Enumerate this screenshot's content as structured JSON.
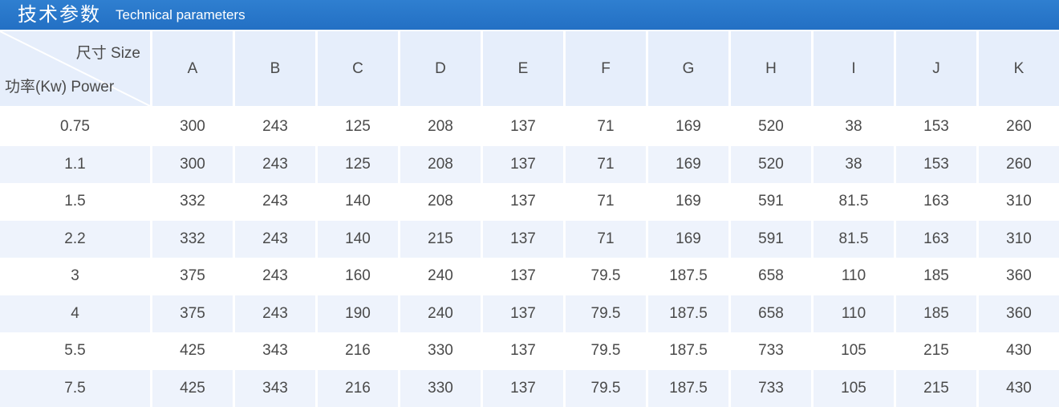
{
  "header": {
    "title_cn": "技术参数",
    "title_en": "Technical parameters"
  },
  "table": {
    "corner_top": "尺寸 Size",
    "corner_bottom": "功率(Kw) Power",
    "columns": [
      "A",
      "B",
      "C",
      "D",
      "E",
      "F",
      "G",
      "H",
      "I",
      "J",
      "K"
    ],
    "rows": [
      {
        "power": "0.75",
        "values": [
          "300",
          "243",
          "125",
          "208",
          "137",
          "71",
          "169",
          "520",
          "38",
          "153",
          "260"
        ]
      },
      {
        "power": "1.1",
        "values": [
          "300",
          "243",
          "125",
          "208",
          "137",
          "71",
          "169",
          "520",
          "38",
          "153",
          "260"
        ]
      },
      {
        "power": "1.5",
        "values": [
          "332",
          "243",
          "140",
          "208",
          "137",
          "71",
          "169",
          "591",
          "81.5",
          "163",
          "310"
        ]
      },
      {
        "power": "2.2",
        "values": [
          "332",
          "243",
          "140",
          "215",
          "137",
          "71",
          "169",
          "591",
          "81.5",
          "163",
          "310"
        ]
      },
      {
        "power": "3",
        "values": [
          "375",
          "243",
          "160",
          "240",
          "137",
          "79.5",
          "187.5",
          "658",
          "110",
          "185",
          "360"
        ]
      },
      {
        "power": "4",
        "values": [
          "375",
          "243",
          "190",
          "240",
          "137",
          "79.5",
          "187.5",
          "658",
          "110",
          "185",
          "360"
        ]
      },
      {
        "power": "5.5",
        "values": [
          "425",
          "343",
          "216",
          "330",
          "137",
          "79.5",
          "187.5",
          "733",
          "105",
          "215",
          "430"
        ]
      },
      {
        "power": "7.5",
        "values": [
          "425",
          "343",
          "216",
          "330",
          "137",
          "79.5",
          "187.5",
          "733",
          "105",
          "215",
          "430"
        ]
      }
    ]
  },
  "colors": {
    "header_bar": "#2370c4",
    "header_cells": "#e6eefb",
    "stripe": "#eef3fc",
    "text": "#4a4a4a"
  }
}
